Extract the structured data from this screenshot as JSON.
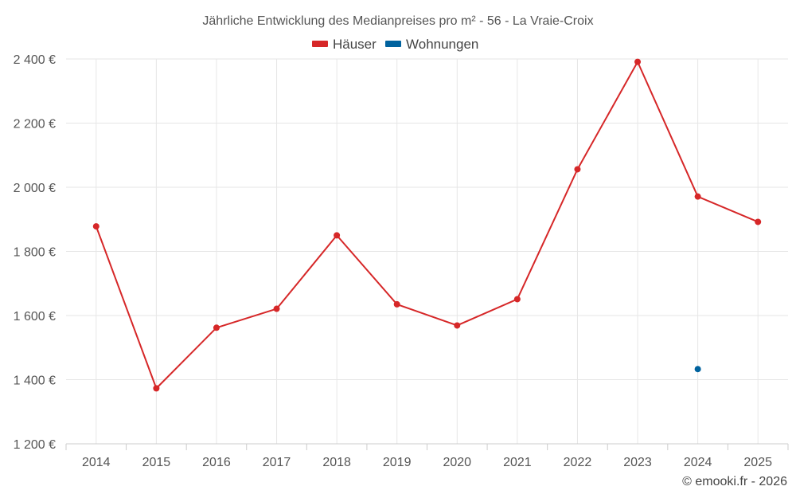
{
  "chart_data": {
    "type": "line",
    "title": "Jährliche Entwicklung des Medianpreises pro m² - 56 - La Vraie-Croix",
    "categories": [
      "2014",
      "2015",
      "2016",
      "2017",
      "2018",
      "2019",
      "2020",
      "2021",
      "2022",
      "2023",
      "2024",
      "2025"
    ],
    "series": [
      {
        "name": "Häuser",
        "color": "#d62728",
        "values": [
          1878,
          1373,
          1562,
          1621,
          1850,
          1635,
          1569,
          1651,
          2056,
          2391,
          1971,
          1892
        ]
      },
      {
        "name": "Wohnungen",
        "color": "#00629e",
        "values": [
          null,
          null,
          null,
          null,
          null,
          null,
          null,
          null,
          null,
          null,
          1433,
          null
        ]
      }
    ],
    "ylim": [
      1200,
      2400
    ],
    "yticks": [
      1200,
      1400,
      1600,
      1800,
      2000,
      2200,
      2400
    ],
    "ytick_labels": [
      "1 200 €",
      "1 400 €",
      "1 600 €",
      "1 800 €",
      "2 000 €",
      "2 200 €",
      "2 400 €"
    ],
    "grid": true,
    "legend_position": "top-center",
    "credit": "© emooki.fr - 2026"
  }
}
